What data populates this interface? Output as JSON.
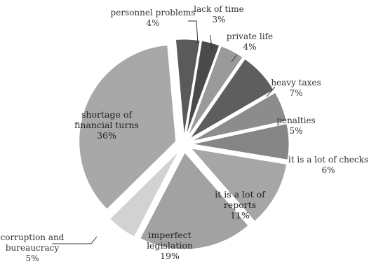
{
  "chart_data": {
    "type": "pie",
    "title": "",
    "exploded": true,
    "slices": [
      {
        "label": "personnel problems",
        "label_lines": [
          "personnel problems"
        ],
        "value": 4,
        "value_label": "4%",
        "color": "#5a5a5a"
      },
      {
        "label": "lack of time",
        "label_lines": [
          "lack of time"
        ],
        "value": 3,
        "value_label": "3%",
        "color": "#4a4a4a"
      },
      {
        "label": "private life",
        "label_lines": [
          "private life"
        ],
        "value": 4,
        "value_label": "4%",
        "color": "#9a9a9a"
      },
      {
        "label": "heavy taxes",
        "label_lines": [
          "heavy taxes"
        ],
        "value": 7,
        "value_label": "7%",
        "color": "#5e5e5e"
      },
      {
        "label": "penalties",
        "label_lines": [
          "penalties"
        ],
        "value": 5,
        "value_label": "5%",
        "color": "#8c8c8c"
      },
      {
        "label": "it is a lot of checks",
        "label_lines": [
          "it is a lot of checks"
        ],
        "value": 6,
        "value_label": "6%",
        "color": "#858585"
      },
      {
        "label": "it is a lot of reports",
        "label_lines": [
          "it is a lot of",
          "reports"
        ],
        "value": 11,
        "value_label": "11%",
        "color": "#a6a6a6"
      },
      {
        "label": "imperfect legislation",
        "label_lines": [
          "imperfect",
          "legislation"
        ],
        "value": 19,
        "value_label": "19%",
        "color": "#a2a2a2"
      },
      {
        "label": "corruption and bureaucracy",
        "label_lines": [
          "corruption and",
          "bureaucracy"
        ],
        "value": 5,
        "value_label": "5%",
        "color": "#d2d2d2"
      },
      {
        "label": "shortage of financial turns",
        "label_lines": [
          "shortage of",
          "financial turns"
        ],
        "value": 36,
        "value_label": "36%",
        "color": "#a8a8a8"
      }
    ]
  }
}
